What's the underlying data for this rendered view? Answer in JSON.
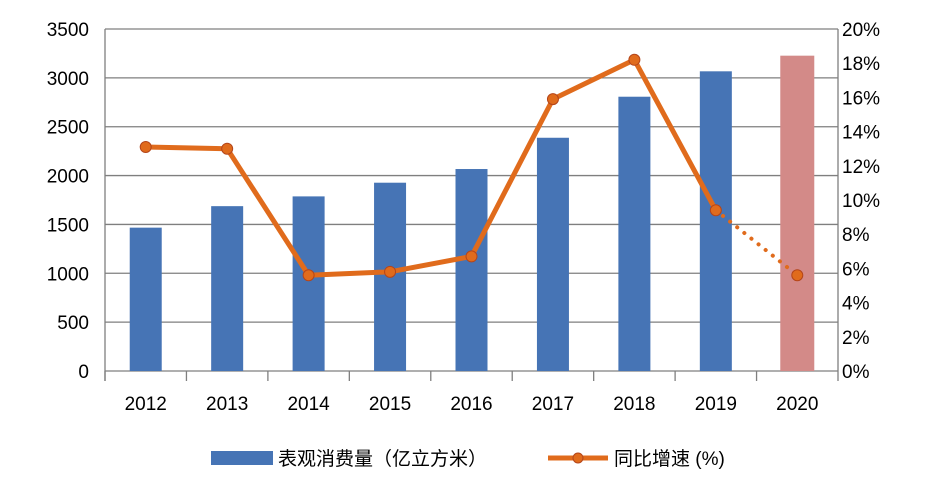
{
  "chart_data": {
    "type": "bar+line",
    "categories": [
      "2012",
      "2013",
      "2014",
      "2015",
      "2016",
      "2017",
      "2018",
      "2019",
      "2020"
    ],
    "series": [
      {
        "name": "表观消费量（亿立方米）",
        "type": "bar",
        "axis": "left",
        "values": [
          1467,
          1687,
          1787,
          1927,
          2067,
          2387,
          2807,
          3067,
          3227
        ],
        "color": "#4674b5",
        "highlight_color": "#d38a88",
        "highlight_index": 8
      },
      {
        "name": "同比增速 (%)",
        "type": "line",
        "axis": "right",
        "values": [
          13.1,
          13.0,
          5.6,
          5.8,
          6.7,
          15.9,
          18.2,
          9.4,
          5.6
        ],
        "color": "#e06b1c",
        "dotted_from_index": 7
      }
    ],
    "left_axis": {
      "range": [
        0,
        3500
      ],
      "ticks": [
        "0",
        "500",
        "1000",
        "1500",
        "2000",
        "2500",
        "3000",
        "3500"
      ]
    },
    "right_axis": {
      "range": [
        0,
        20
      ],
      "ticks": [
        "0%",
        "2%",
        "4%",
        "6%",
        "8%",
        "10%",
        "12%",
        "14%",
        "16%",
        "18%",
        "20%"
      ]
    },
    "grid": true,
    "legend_position": "bottom"
  }
}
